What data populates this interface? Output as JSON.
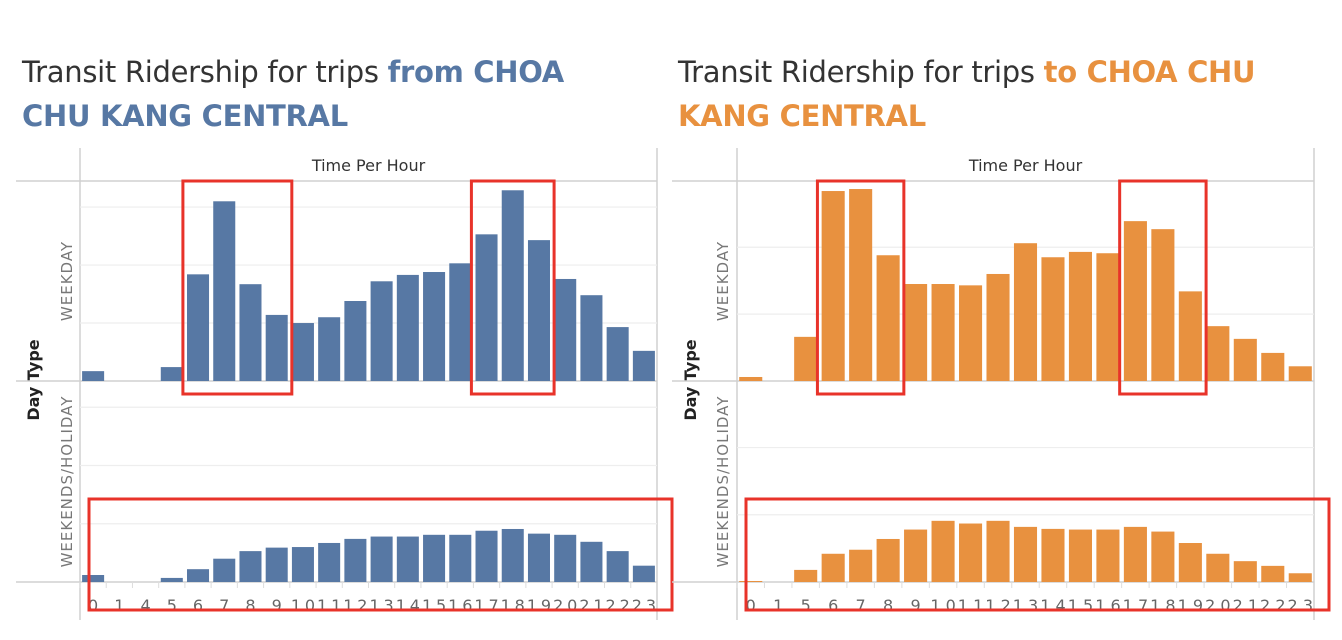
{
  "chart_data": [
    {
      "type": "bar",
      "title_prefix": "Transit Ridership for trips ",
      "title_highlight": "from CHOA CHU KANG CENTRAL",
      "color": "#5778a4",
      "xlabel": "Time Per Hour",
      "ylabel": "Day Type",
      "categories": [
        "0",
        "1",
        "4",
        "5",
        "6",
        "7",
        "8",
        "9",
        "10",
        "11",
        "12",
        "13",
        "14",
        "15",
        "16",
        "17",
        "18",
        "19",
        "20",
        "21",
        "22",
        "23"
      ],
      "series": [
        {
          "name": "WEEKDAY",
          "values": [
            1.7,
            0,
            0,
            2.4,
            18.4,
            31,
            16.7,
            11.4,
            10,
            11,
            13.8,
            17.2,
            18.3,
            18.8,
            20.3,
            25.3,
            32.9,
            24.3,
            17.6,
            14.8,
            9.3,
            5.2
          ]
        },
        {
          "name": "WEEKENDS/HOLIDAY",
          "values": [
            1.2,
            0,
            0,
            0.7,
            2.2,
            4,
            5.3,
            5.9,
            6,
            6.7,
            7.4,
            7.8,
            7.8,
            8.1,
            8.1,
            8.8,
            9.1,
            8.3,
            8.1,
            6.9,
            5.3,
            2.8
          ]
        }
      ],
      "ylim": [
        0,
        34.5
      ],
      "grid_step": 10,
      "highlights": [
        {
          "panel": "WEEKDAY",
          "from": "6",
          "to": "9"
        },
        {
          "panel": "WEEKDAY",
          "from": "17",
          "to": "19"
        },
        {
          "panel": "WEEKENDS/HOLIDAY",
          "from": "0",
          "to": "23"
        }
      ]
    },
    {
      "type": "bar",
      "title_prefix": "Transit Ridership for trips ",
      "title_highlight": "to CHOA CHU KANG CENTRAL",
      "color": "#e8913f",
      "xlabel": "Time Per Hour",
      "ylabel": "Day Type",
      "categories": [
        "0",
        "1",
        "5",
        "6",
        "7",
        "8",
        "9",
        "10",
        "11",
        "12",
        "13",
        "14",
        "15",
        "16",
        "17",
        "18",
        "19",
        "20",
        "21",
        "22",
        "23"
      ],
      "series": [
        {
          "name": "WEEKDAY",
          "values": [
            0.6,
            0,
            6.6,
            28.4,
            28.7,
            18.8,
            14.5,
            14.5,
            14.3,
            16,
            20.6,
            18.5,
            19.3,
            19.1,
            23.9,
            22.7,
            13.4,
            8.2,
            6.3,
            4.2,
            2.2
          ]
        },
        {
          "name": "WEEKENDS/HOLIDAY",
          "values": [
            0.15,
            0,
            1.8,
            4.2,
            4.8,
            6.4,
            7.8,
            9.1,
            8.7,
            9.1,
            8.2,
            7.9,
            7.8,
            7.8,
            8.2,
            7.5,
            5.8,
            4.2,
            3.1,
            2.4,
            1.3
          ]
        }
      ],
      "ylim": [
        0,
        29.9
      ],
      "grid_step": 10,
      "highlights": [
        {
          "panel": "WEEKDAY",
          "from": "6",
          "to": "8"
        },
        {
          "panel": "WEEKDAY",
          "from": "17",
          "to": "19"
        },
        {
          "panel": "WEEKENDS/HOLIDAY",
          "from": "0",
          "to": "23"
        }
      ]
    }
  ]
}
